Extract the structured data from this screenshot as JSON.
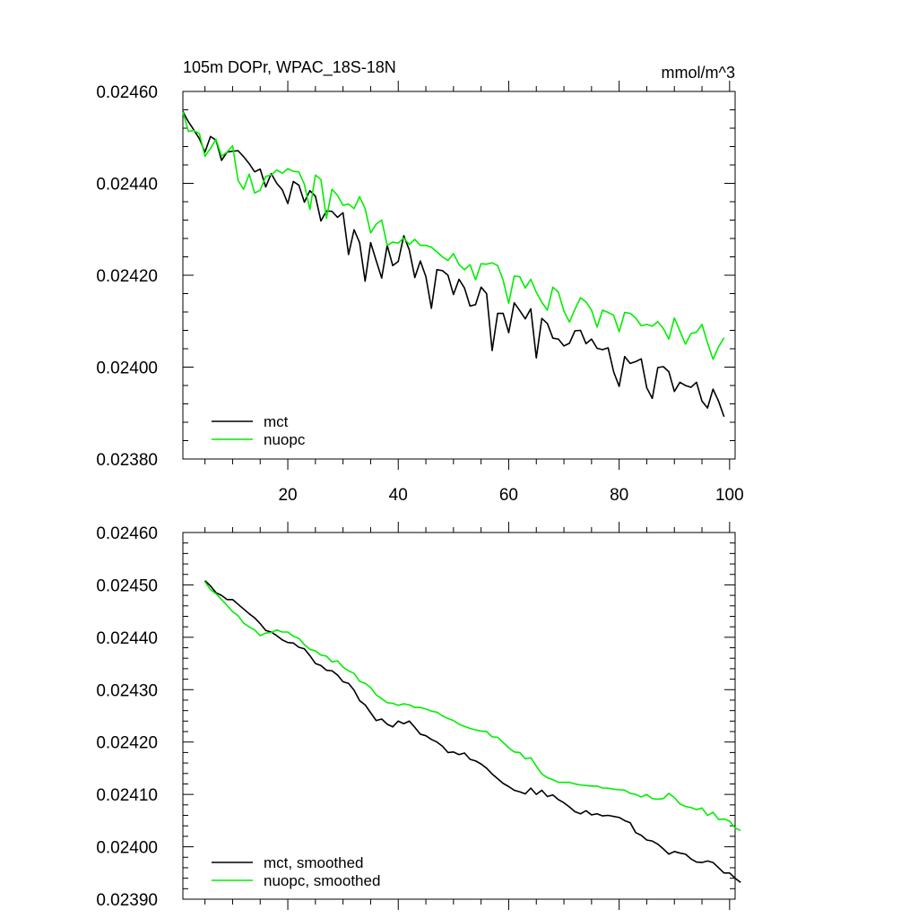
{
  "chart_data": [
    {
      "type": "line",
      "title": "105m DOPr, WPAC_18S-18N",
      "units": "mmol/m^3",
      "xlim": [
        1,
        101
      ],
      "ylim": [
        0.0238,
        0.0246
      ],
      "x_ticks": [
        20,
        40,
        60,
        80,
        100
      ],
      "x_tick_labels": [
        "20",
        "40",
        "60",
        "80",
        "100"
      ],
      "y_ticks": [
        0.0238,
        0.024,
        0.0242,
        0.0244,
        0.0246
      ],
      "y_tick_labels": [
        "0.02380",
        "0.02400",
        "0.02420",
        "0.02440",
        "0.02460"
      ],
      "legend_location": "bottom-left",
      "x_start": 1,
      "series": [
        {
          "name": "mct",
          "color": "#000000",
          "values": [
            0.024556,
            0.024534,
            0.024516,
            0.024497,
            0.024468,
            0.024502,
            0.024494,
            0.02445,
            0.024468,
            0.02447,
            0.024471,
            0.024458,
            0.024443,
            0.024425,
            0.024431,
            0.024392,
            0.024421,
            0.0244,
            0.024386,
            0.024356,
            0.024404,
            0.024396,
            0.024359,
            0.024384,
            0.024372,
            0.024318,
            0.02434,
            0.024339,
            0.024326,
            0.024336,
            0.024245,
            0.024299,
            0.024271,
            0.024187,
            0.024271,
            0.024232,
            0.024194,
            0.024265,
            0.024221,
            0.02423,
            0.024286,
            0.024255,
            0.024195,
            0.024231,
            0.024197,
            0.024128,
            0.024212,
            0.02421,
            0.0242,
            0.024158,
            0.024191,
            0.024172,
            0.024133,
            0.024136,
            0.024174,
            0.02416,
            0.024036,
            0.024117,
            0.024117,
            0.024075,
            0.02414,
            0.024123,
            0.024105,
            0.024127,
            0.02402,
            0.024106,
            0.024095,
            0.024063,
            0.024061,
            0.024046,
            0.024052,
            0.024079,
            0.02408,
            0.024051,
            0.024061,
            0.024041,
            0.024038,
            0.024042,
            0.02399,
            0.023958,
            0.024023,
            0.024008,
            0.024012,
            0.024018,
            0.023955,
            0.023932,
            0.023999,
            0.024001,
            0.02399,
            0.023947,
            0.023967,
            0.02396,
            0.023956,
            0.023967,
            0.023926,
            0.023911,
            0.023952,
            0.023926,
            0.023892
          ]
        },
        {
          "name": "nuopc",
          "color": "#00ee00",
          "values": [
            0.024555,
            0.024513,
            0.024515,
            0.024508,
            0.024459,
            0.024476,
            0.024496,
            0.024459,
            0.024468,
            0.024482,
            0.024406,
            0.024387,
            0.02442,
            0.024379,
            0.024385,
            0.024415,
            0.024418,
            0.024429,
            0.024422,
            0.024432,
            0.024426,
            0.024425,
            0.024398,
            0.024343,
            0.024418,
            0.024408,
            0.024324,
            0.024387,
            0.024374,
            0.024352,
            0.024355,
            0.024345,
            0.024371,
            0.024345,
            0.024292,
            0.024311,
            0.02432,
            0.024265,
            0.024272,
            0.02427,
            0.024281,
            0.024267,
            0.024278,
            0.024265,
            0.024265,
            0.024261,
            0.024251,
            0.02424,
            0.024232,
            0.024247,
            0.024223,
            0.024212,
            0.024223,
            0.02419,
            0.024225,
            0.024224,
            0.024227,
            0.024221,
            0.024189,
            0.024139,
            0.024198,
            0.024197,
            0.024172,
            0.024191,
            0.024163,
            0.024141,
            0.024124,
            0.024174,
            0.024163,
            0.024122,
            0.024098,
            0.024126,
            0.024151,
            0.024142,
            0.024124,
            0.024087,
            0.024124,
            0.024119,
            0.024113,
            0.024077,
            0.024119,
            0.024117,
            0.024107,
            0.02409,
            0.024093,
            0.024089,
            0.024099,
            0.024084,
            0.024061,
            0.024107,
            0.024079,
            0.02405,
            0.024073,
            0.024076,
            0.024093,
            0.024053,
            0.024017,
            0.024044,
            0.024064
          ]
        }
      ]
    },
    {
      "type": "line",
      "title": "",
      "xlim": [
        1,
        101
      ],
      "ylim": [
        0.0239,
        0.0246
      ],
      "x_ticks": [
        20,
        40,
        60,
        80,
        100
      ],
      "x_tick_labels": [],
      "y_ticks": [
        0.0239,
        0.024,
        0.0241,
        0.0242,
        0.0243,
        0.0244,
        0.0245,
        0.0246
      ],
      "y_tick_labels": [
        "0.02390",
        "0.02400",
        "0.02410",
        "0.02420",
        "0.02430",
        "0.02440",
        "0.02450",
        "0.02460"
      ],
      "legend_location": "bottom-left",
      "x_start": 5,
      "series": [
        {
          "name": "mct, smoothed",
          "color": "#000000",
          "values": [
            0.024508,
            0.024498,
            0.024485,
            0.02448,
            0.024472,
            0.024472,
            0.024463,
            0.024454,
            0.024445,
            0.024437,
            0.024426,
            0.024413,
            0.02441,
            0.024403,
            0.024395,
            0.02439,
            0.024389,
            0.024381,
            0.024378,
            0.024365,
            0.02435,
            0.024346,
            0.024337,
            0.024336,
            0.024328,
            0.024315,
            0.024312,
            0.024299,
            0.024279,
            0.024271,
            0.024256,
            0.024241,
            0.024244,
            0.024234,
            0.024229,
            0.02424,
            0.024235,
            0.02424,
            0.024228,
            0.024215,
            0.024212,
            0.024205,
            0.0242,
            0.024192,
            0.02418,
            0.024181,
            0.024176,
            0.024179,
            0.024167,
            0.024164,
            0.024158,
            0.02415,
            0.024139,
            0.02413,
            0.024121,
            0.024115,
            0.024108,
            0.024105,
            0.024101,
            0.024112,
            0.0241,
            0.024108,
            0.024096,
            0.024099,
            0.02409,
            0.024084,
            0.024076,
            0.024067,
            0.024063,
            0.024069,
            0.024061,
            0.024063,
            0.024059,
            0.02406,
            0.024058,
            0.024056,
            0.02405,
            0.024046,
            0.024027,
            0.024022,
            0.024013,
            0.024011,
            0.024005,
            0.023996,
            0.023986,
            0.023991,
            0.023988,
            0.023986,
            0.023977,
            0.023971,
            0.02397,
            0.023973,
            0.02397,
            0.02396,
            0.02395,
            0.02395,
            0.02394,
            0.023932
          ]
        },
        {
          "name": "nuopc, smoothed",
          "color": "#00ee00",
          "values": [
            0.024506,
            0.024491,
            0.024483,
            0.024472,
            0.024461,
            0.024449,
            0.024441,
            0.024427,
            0.02442,
            0.024414,
            0.024403,
            0.024408,
            0.024409,
            0.024414,
            0.02441,
            0.02441,
            0.024402,
            0.024398,
            0.024386,
            0.024377,
            0.024374,
            0.024366,
            0.024364,
            0.024353,
            0.024355,
            0.024343,
            0.024336,
            0.024331,
            0.024316,
            0.024312,
            0.024304,
            0.02429,
            0.024283,
            0.024275,
            0.024274,
            0.02427,
            0.024273,
            0.024271,
            0.024266,
            0.024266,
            0.024263,
            0.024259,
            0.024257,
            0.02425,
            0.024245,
            0.024241,
            0.024234,
            0.02423,
            0.024226,
            0.024223,
            0.024221,
            0.02422,
            0.02421,
            0.024209,
            0.024199,
            0.024189,
            0.024181,
            0.02418,
            0.024168,
            0.02417,
            0.024154,
            0.024139,
            0.024132,
            0.024128,
            0.024123,
            0.024123,
            0.024123,
            0.02412,
            0.024118,
            0.024117,
            0.024116,
            0.024116,
            0.024112,
            0.024112,
            0.02411,
            0.024109,
            0.024108,
            0.024102,
            0.0241,
            0.024095,
            0.0241,
            0.024092,
            0.024091,
            0.024092,
            0.024102,
            0.024094,
            0.024082,
            0.024077,
            0.024075,
            0.024071,
            0.024074,
            0.02406,
            0.024066,
            0.024052,
            0.024053,
            0.024049,
            0.024036,
            0.024031
          ]
        }
      ]
    }
  ]
}
